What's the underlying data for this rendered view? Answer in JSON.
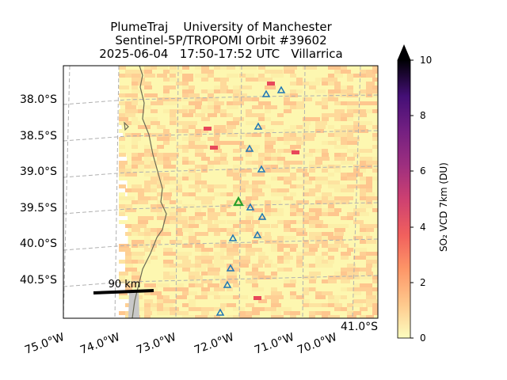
{
  "title": {
    "line1": "PlumeTraj    University of Manchester",
    "line2": "Sentinel-5P/TROPOMI Orbit #39602",
    "line3": "2025-06-04   17:50-17:52 UTC   Villarrica"
  },
  "map": {
    "lat_labels": [
      "38.0°S",
      "38.5°S",
      "39.0°S",
      "39.5°S",
      "40.0°S",
      "40.5°S",
      "41.0°S"
    ],
    "lon_labels": [
      "75.0°W",
      "74.0°W",
      "73.0°W",
      "72.0°W",
      "71.0°W",
      "70.0°W"
    ],
    "scale_bar_label": "90 km",
    "target_volcano": "Villarrica",
    "volcano_color": "#2ca02c",
    "other_volcano_color": "#1f77b4",
    "coastline_color": "#6b6b55",
    "grid_color": "#b0b0b0"
  },
  "colorbar": {
    "label": "SO₂ VCD 7km (DU)",
    "min": 0,
    "max": 10,
    "ticks": [
      "0",
      "2",
      "4",
      "6",
      "8",
      "10"
    ],
    "extend": "max",
    "colormap": "magma_r"
  }
}
